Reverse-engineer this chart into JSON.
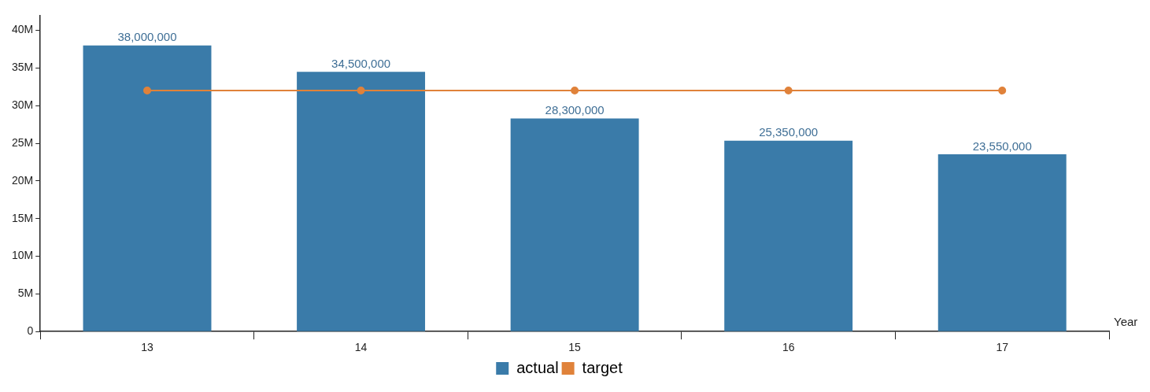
{
  "chart_data": {
    "type": "bar",
    "xlabel": "Year",
    "categories": [
      "13",
      "14",
      "15",
      "16",
      "17"
    ],
    "series": [
      {
        "name": "actual",
        "color": "#3a7ba9",
        "values": [
          38000000,
          34500000,
          28300000,
          25350000,
          23550000
        ],
        "value_labels": [
          "38,000,000",
          "34,500,000",
          "28,300,000",
          "25,350,000",
          "23,550,000"
        ]
      },
      {
        "name": "target",
        "type": "line",
        "color": "#e0823a",
        "values": [
          32000000,
          32000000,
          32000000,
          32000000,
          32000000
        ]
      }
    ],
    "ylim": [
      0,
      42000000
    ],
    "yticks": [
      {
        "value": 0,
        "label": "0"
      },
      {
        "value": 5000000,
        "label": "5M"
      },
      {
        "value": 10000000,
        "label": "10M"
      },
      {
        "value": 15000000,
        "label": "15M"
      },
      {
        "value": 20000000,
        "label": "20M"
      },
      {
        "value": 25000000,
        "label": "25M"
      },
      {
        "value": 30000000,
        "label": "30M"
      },
      {
        "value": 35000000,
        "label": "35M"
      },
      {
        "value": 40000000,
        "label": "40M"
      }
    ],
    "grid": false,
    "legend": "bottom",
    "marker": "circle",
    "line_style": "solid"
  }
}
